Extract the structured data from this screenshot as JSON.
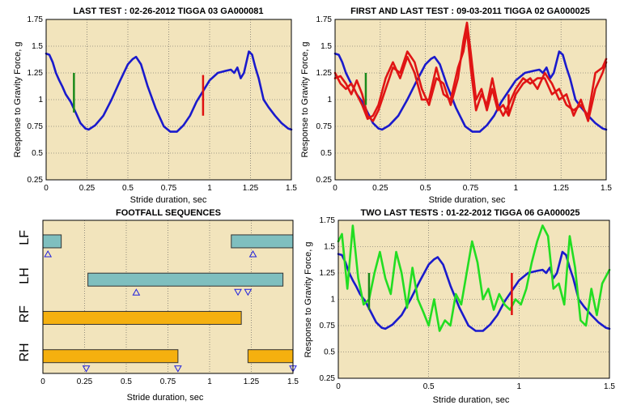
{
  "chart_data": [
    {
      "type": "line",
      "title": "LAST TEST : 02-26-2012 TIGGA 03 GA000081",
      "xlabel": "Stride duration, sec",
      "ylabel": "Response to Gravity Force, g",
      "xlim": [
        0,
        1.5
      ],
      "ylim": [
        0.25,
        1.75
      ],
      "xticks": [
        0,
        0.25,
        0.5,
        0.75,
        1,
        1.25,
        1.5
      ],
      "xtick_labels": [
        "0",
        "0.25",
        "0.5",
        "0.75",
        "1",
        "1.25",
        "1.5"
      ],
      "yticks": [
        0.25,
        0.5,
        0.75,
        1,
        1.25,
        1.5,
        1.75
      ],
      "ytick_labels": [
        "0.25",
        "0.5",
        "0.75",
        "1",
        "1.25",
        "1.5",
        "1.75"
      ],
      "grid": true,
      "series": [
        {
          "color": "#1a1acc",
          "x": [
            0,
            0.02,
            0.04,
            0.06,
            0.08,
            0.1,
            0.12,
            0.15,
            0.18,
            0.21,
            0.24,
            0.26,
            0.3,
            0.35,
            0.4,
            0.45,
            0.5,
            0.53,
            0.55,
            0.58,
            0.62,
            0.67,
            0.72,
            0.76,
            0.8,
            0.84,
            0.88,
            0.92,
            0.96,
            1.0,
            1.05,
            1.1,
            1.13,
            1.15,
            1.17,
            1.19,
            1.21,
            1.24,
            1.26,
            1.28,
            1.3,
            1.33,
            1.36,
            1.4,
            1.44,
            1.48,
            1.5
          ],
          "y": [
            1.43,
            1.42,
            1.35,
            1.25,
            1.18,
            1.12,
            1.05,
            0.98,
            0.88,
            0.78,
            0.73,
            0.72,
            0.76,
            0.85,
            1.0,
            1.17,
            1.33,
            1.38,
            1.4,
            1.33,
            1.13,
            0.92,
            0.75,
            0.7,
            0.7,
            0.76,
            0.85,
            0.98,
            1.08,
            1.18,
            1.25,
            1.27,
            1.28,
            1.25,
            1.3,
            1.2,
            1.25,
            1.45,
            1.42,
            1.3,
            1.2,
            1.0,
            0.93,
            0.85,
            0.78,
            0.73,
            0.72
          ]
        }
      ],
      "markers": [
        {
          "x": 0.17,
          "y1": 0.88,
          "y2": 1.25,
          "color": "#1a8a1a"
        },
        {
          "x": 0.96,
          "y1": 0.85,
          "y2": 1.23,
          "color": "#e01010"
        }
      ]
    },
    {
      "type": "line",
      "title": "FIRST AND LAST TEST : 09-03-2011 TIGGA 02 GA000025",
      "xlabel": "Stride duration, sec",
      "ylabel": "Response to Gravity Force, g",
      "xlim": [
        0,
        1.5
      ],
      "ylim": [
        0.25,
        1.75
      ],
      "xticks": [
        0,
        0.25,
        0.5,
        0.75,
        1,
        1.25,
        1.5
      ],
      "xtick_labels": [
        "0",
        "0.25",
        "0.5",
        "0.75",
        "1",
        "1.25",
        "1.5"
      ],
      "yticks": [
        0.25,
        0.5,
        0.75,
        1,
        1.25,
        1.5,
        1.75
      ],
      "ytick_labels": [
        "0.25",
        "0.5",
        "0.75",
        "1",
        "1.25",
        "1.5",
        "1.75"
      ],
      "grid": true,
      "series": [
        {
          "color": "#1a1acc",
          "x": [
            0,
            0.02,
            0.04,
            0.06,
            0.08,
            0.1,
            0.12,
            0.15,
            0.18,
            0.21,
            0.24,
            0.26,
            0.3,
            0.35,
            0.4,
            0.45,
            0.5,
            0.53,
            0.55,
            0.58,
            0.62,
            0.67,
            0.72,
            0.76,
            0.8,
            0.84,
            0.88,
            0.92,
            0.96,
            1.0,
            1.05,
            1.1,
            1.13,
            1.15,
            1.17,
            1.19,
            1.21,
            1.24,
            1.26,
            1.28,
            1.3,
            1.33,
            1.36,
            1.4,
            1.44,
            1.48,
            1.5
          ],
          "y": [
            1.43,
            1.42,
            1.35,
            1.25,
            1.18,
            1.12,
            1.05,
            0.98,
            0.88,
            0.78,
            0.73,
            0.72,
            0.76,
            0.85,
            1.0,
            1.17,
            1.33,
            1.38,
            1.4,
            1.33,
            1.13,
            0.92,
            0.75,
            0.7,
            0.7,
            0.76,
            0.85,
            0.98,
            1.08,
            1.18,
            1.25,
            1.27,
            1.28,
            1.25,
            1.3,
            1.2,
            1.25,
            1.45,
            1.42,
            1.3,
            1.2,
            1.0,
            0.93,
            0.85,
            0.78,
            0.73,
            0.72
          ]
        },
        {
          "color": "#e01515",
          "x": [
            0,
            0.03,
            0.06,
            0.09,
            0.12,
            0.15,
            0.18,
            0.21,
            0.24,
            0.28,
            0.32,
            0.36,
            0.4,
            0.44,
            0.48,
            0.52,
            0.56,
            0.6,
            0.64,
            0.68,
            0.71,
            0.73,
            0.75,
            0.78,
            0.81,
            0.84,
            0.87,
            0.9,
            0.93,
            0.96,
            1.0,
            1.04,
            1.08,
            1.12,
            1.16,
            1.2,
            1.24,
            1.28,
            1.32,
            1.36,
            1.4,
            1.44,
            1.48,
            1.5
          ],
          "y": [
            1.2,
            1.22,
            1.15,
            1.05,
            1.18,
            1.05,
            0.85,
            0.8,
            0.9,
            1.1,
            1.3,
            1.25,
            1.45,
            1.35,
            1.1,
            0.95,
            1.2,
            1.15,
            0.95,
            1.2,
            1.55,
            1.72,
            1.45,
            1.0,
            1.1,
            0.9,
            1.1,
            0.9,
            0.95,
            0.85,
            1.05,
            1.15,
            1.2,
            1.1,
            1.25,
            1.15,
            1.0,
            1.05,
            0.85,
            1.0,
            0.8,
            1.1,
            1.25,
            1.35
          ]
        },
        {
          "color": "#e01515",
          "x": [
            0,
            0.03,
            0.06,
            0.09,
            0.12,
            0.15,
            0.18,
            0.21,
            0.24,
            0.28,
            0.32,
            0.36,
            0.4,
            0.44,
            0.48,
            0.52,
            0.56,
            0.6,
            0.64,
            0.68,
            0.71,
            0.73,
            0.75,
            0.78,
            0.81,
            0.84,
            0.87,
            0.9,
            0.93,
            0.96,
            1.0,
            1.04,
            1.08,
            1.12,
            1.16,
            1.2,
            1.24,
            1.28,
            1.32,
            1.36,
            1.4,
            1.44,
            1.48,
            1.5
          ],
          "y": [
            1.25,
            1.15,
            1.1,
            1.15,
            1.05,
            0.95,
            0.82,
            0.85,
            0.95,
            1.2,
            1.35,
            1.2,
            1.4,
            1.25,
            1.0,
            1.0,
            1.3,
            1.05,
            1.0,
            1.3,
            1.45,
            1.65,
            1.3,
            0.9,
            1.05,
            0.95,
            1.2,
            0.95,
            0.85,
            0.95,
            1.1,
            1.2,
            1.15,
            1.2,
            1.2,
            1.05,
            1.1,
            0.95,
            0.9,
            0.95,
            0.85,
            1.25,
            1.3,
            1.38
          ]
        }
      ],
      "markers": [
        {
          "x": 0.17,
          "y1": 0.95,
          "y2": 1.25,
          "color": "#1a8a1a"
        },
        {
          "x": 0.96,
          "y1": 0.85,
          "y2": 1.05,
          "color": "#e01010"
        }
      ]
    },
    {
      "type": "bar",
      "title": "FOOTFALL SEQUENCES",
      "xlabel": "Stride duration, sec",
      "xlim": [
        0,
        1.5
      ],
      "xticks": [
        0,
        0.25,
        0.5,
        0.75,
        1,
        1.25,
        1.5
      ],
      "xtick_labels": [
        "0",
        "0.25",
        "0.5",
        "0.75",
        "1",
        "1.25",
        "1.5"
      ],
      "categories": [
        "LF",
        "LH",
        "RF",
        "RH"
      ],
      "bars": [
        {
          "row": "LF",
          "start": 0,
          "end": 0.11,
          "color": "#7fbfbf"
        },
        {
          "row": "LF",
          "start": 1.13,
          "end": 1.5,
          "color": "#7fbfbf"
        },
        {
          "row": "LH",
          "start": 0.27,
          "end": 1.44,
          "color": "#7fbfbf"
        },
        {
          "row": "RF",
          "start": 0,
          "end": 1.19,
          "color": "#f5b00f"
        },
        {
          "row": "RH",
          "start": 0,
          "end": 0.81,
          "color": "#f5b00f"
        },
        {
          "row": "RH",
          "start": 1.23,
          "end": 1.5,
          "color": "#f5b00f"
        }
      ],
      "events": [
        {
          "row": "LF",
          "x": 0.03,
          "dir": "up"
        },
        {
          "row": "LF",
          "x": 1.26,
          "dir": "up"
        },
        {
          "row": "LH",
          "x": 0.56,
          "dir": "up"
        },
        {
          "row": "LH",
          "x": 1.17,
          "dir": "down"
        },
        {
          "row": "LH",
          "x": 1.23,
          "dir": "down"
        },
        {
          "row": "RH",
          "x": 0.26,
          "dir": "down"
        },
        {
          "row": "RH",
          "x": 0.81,
          "dir": "down"
        },
        {
          "row": "RH",
          "x": 1.5,
          "dir": "down"
        }
      ]
    },
    {
      "type": "line",
      "title": "TWO LAST TESTS : 01-22-2012 TIGGA 06 GA000025",
      "xlabel": "Stride duration, sec",
      "ylabel": "Response to Gravity Force, g",
      "xlim": [
        0,
        1.5
      ],
      "ylim": [
        0.25,
        1.75
      ],
      "xticks": [
        0,
        0.5,
        1,
        1.5
      ],
      "xtick_labels": [
        "0",
        "0.5",
        "1",
        "1.5"
      ],
      "yticks": [
        0.25,
        0.5,
        0.75,
        1,
        1.25,
        1.5,
        1.75
      ],
      "ytick_labels": [
        "0.25",
        "0.5",
        "0.75",
        "1",
        "1.25",
        "1.5",
        "1.75"
      ],
      "grid": true,
      "series": [
        {
          "color": "#1a1acc",
          "x": [
            0,
            0.02,
            0.04,
            0.06,
            0.08,
            0.1,
            0.12,
            0.15,
            0.18,
            0.21,
            0.24,
            0.26,
            0.3,
            0.35,
            0.4,
            0.45,
            0.5,
            0.53,
            0.55,
            0.58,
            0.62,
            0.67,
            0.72,
            0.76,
            0.8,
            0.84,
            0.88,
            0.92,
            0.96,
            1.0,
            1.05,
            1.1,
            1.13,
            1.15,
            1.17,
            1.19,
            1.21,
            1.24,
            1.26,
            1.28,
            1.3,
            1.33,
            1.36,
            1.4,
            1.44,
            1.48,
            1.5
          ],
          "y": [
            1.43,
            1.42,
            1.35,
            1.25,
            1.18,
            1.12,
            1.05,
            0.98,
            0.88,
            0.78,
            0.73,
            0.72,
            0.76,
            0.85,
            1.0,
            1.17,
            1.33,
            1.38,
            1.4,
            1.33,
            1.13,
            0.92,
            0.75,
            0.7,
            0.7,
            0.76,
            0.85,
            0.98,
            1.08,
            1.18,
            1.25,
            1.27,
            1.28,
            1.25,
            1.3,
            1.2,
            1.25,
            1.45,
            1.42,
            1.3,
            1.2,
            1.0,
            0.93,
            0.85,
            0.78,
            0.73,
            0.72
          ]
        },
        {
          "color": "#22dd22",
          "x": [
            0,
            0.02,
            0.05,
            0.08,
            0.11,
            0.14,
            0.17,
            0.2,
            0.23,
            0.26,
            0.29,
            0.32,
            0.35,
            0.38,
            0.41,
            0.44,
            0.47,
            0.5,
            0.53,
            0.56,
            0.59,
            0.62,
            0.65,
            0.68,
            0.71,
            0.74,
            0.77,
            0.8,
            0.83,
            0.86,
            0.89,
            0.92,
            0.95,
            0.98,
            1.01,
            1.04,
            1.07,
            1.1,
            1.13,
            1.16,
            1.19,
            1.22,
            1.25,
            1.28,
            1.31,
            1.34,
            1.37,
            1.4,
            1.43,
            1.46,
            1.5
          ],
          "y": [
            1.55,
            1.62,
            1.1,
            1.7,
            1.2,
            0.95,
            1.0,
            1.25,
            1.45,
            1.2,
            1.05,
            1.45,
            1.25,
            0.92,
            1.3,
            1.0,
            0.88,
            0.75,
            1.0,
            0.7,
            0.8,
            0.75,
            1.05,
            0.95,
            1.25,
            1.55,
            1.35,
            1.0,
            1.1,
            0.9,
            1.05,
            0.95,
            0.9,
            1.0,
            0.95,
            1.1,
            1.35,
            1.55,
            1.7,
            1.6,
            1.1,
            1.15,
            0.95,
            1.6,
            1.3,
            0.8,
            0.75,
            1.1,
            0.85,
            1.15,
            1.28
          ]
        }
      ],
      "markers": [
        {
          "x": 0.17,
          "y1": 0.9,
          "y2": 1.25,
          "color": "#1a8a1a"
        },
        {
          "x": 0.96,
          "y1": 0.85,
          "y2": 1.25,
          "color": "#e01010"
        }
      ]
    }
  ]
}
